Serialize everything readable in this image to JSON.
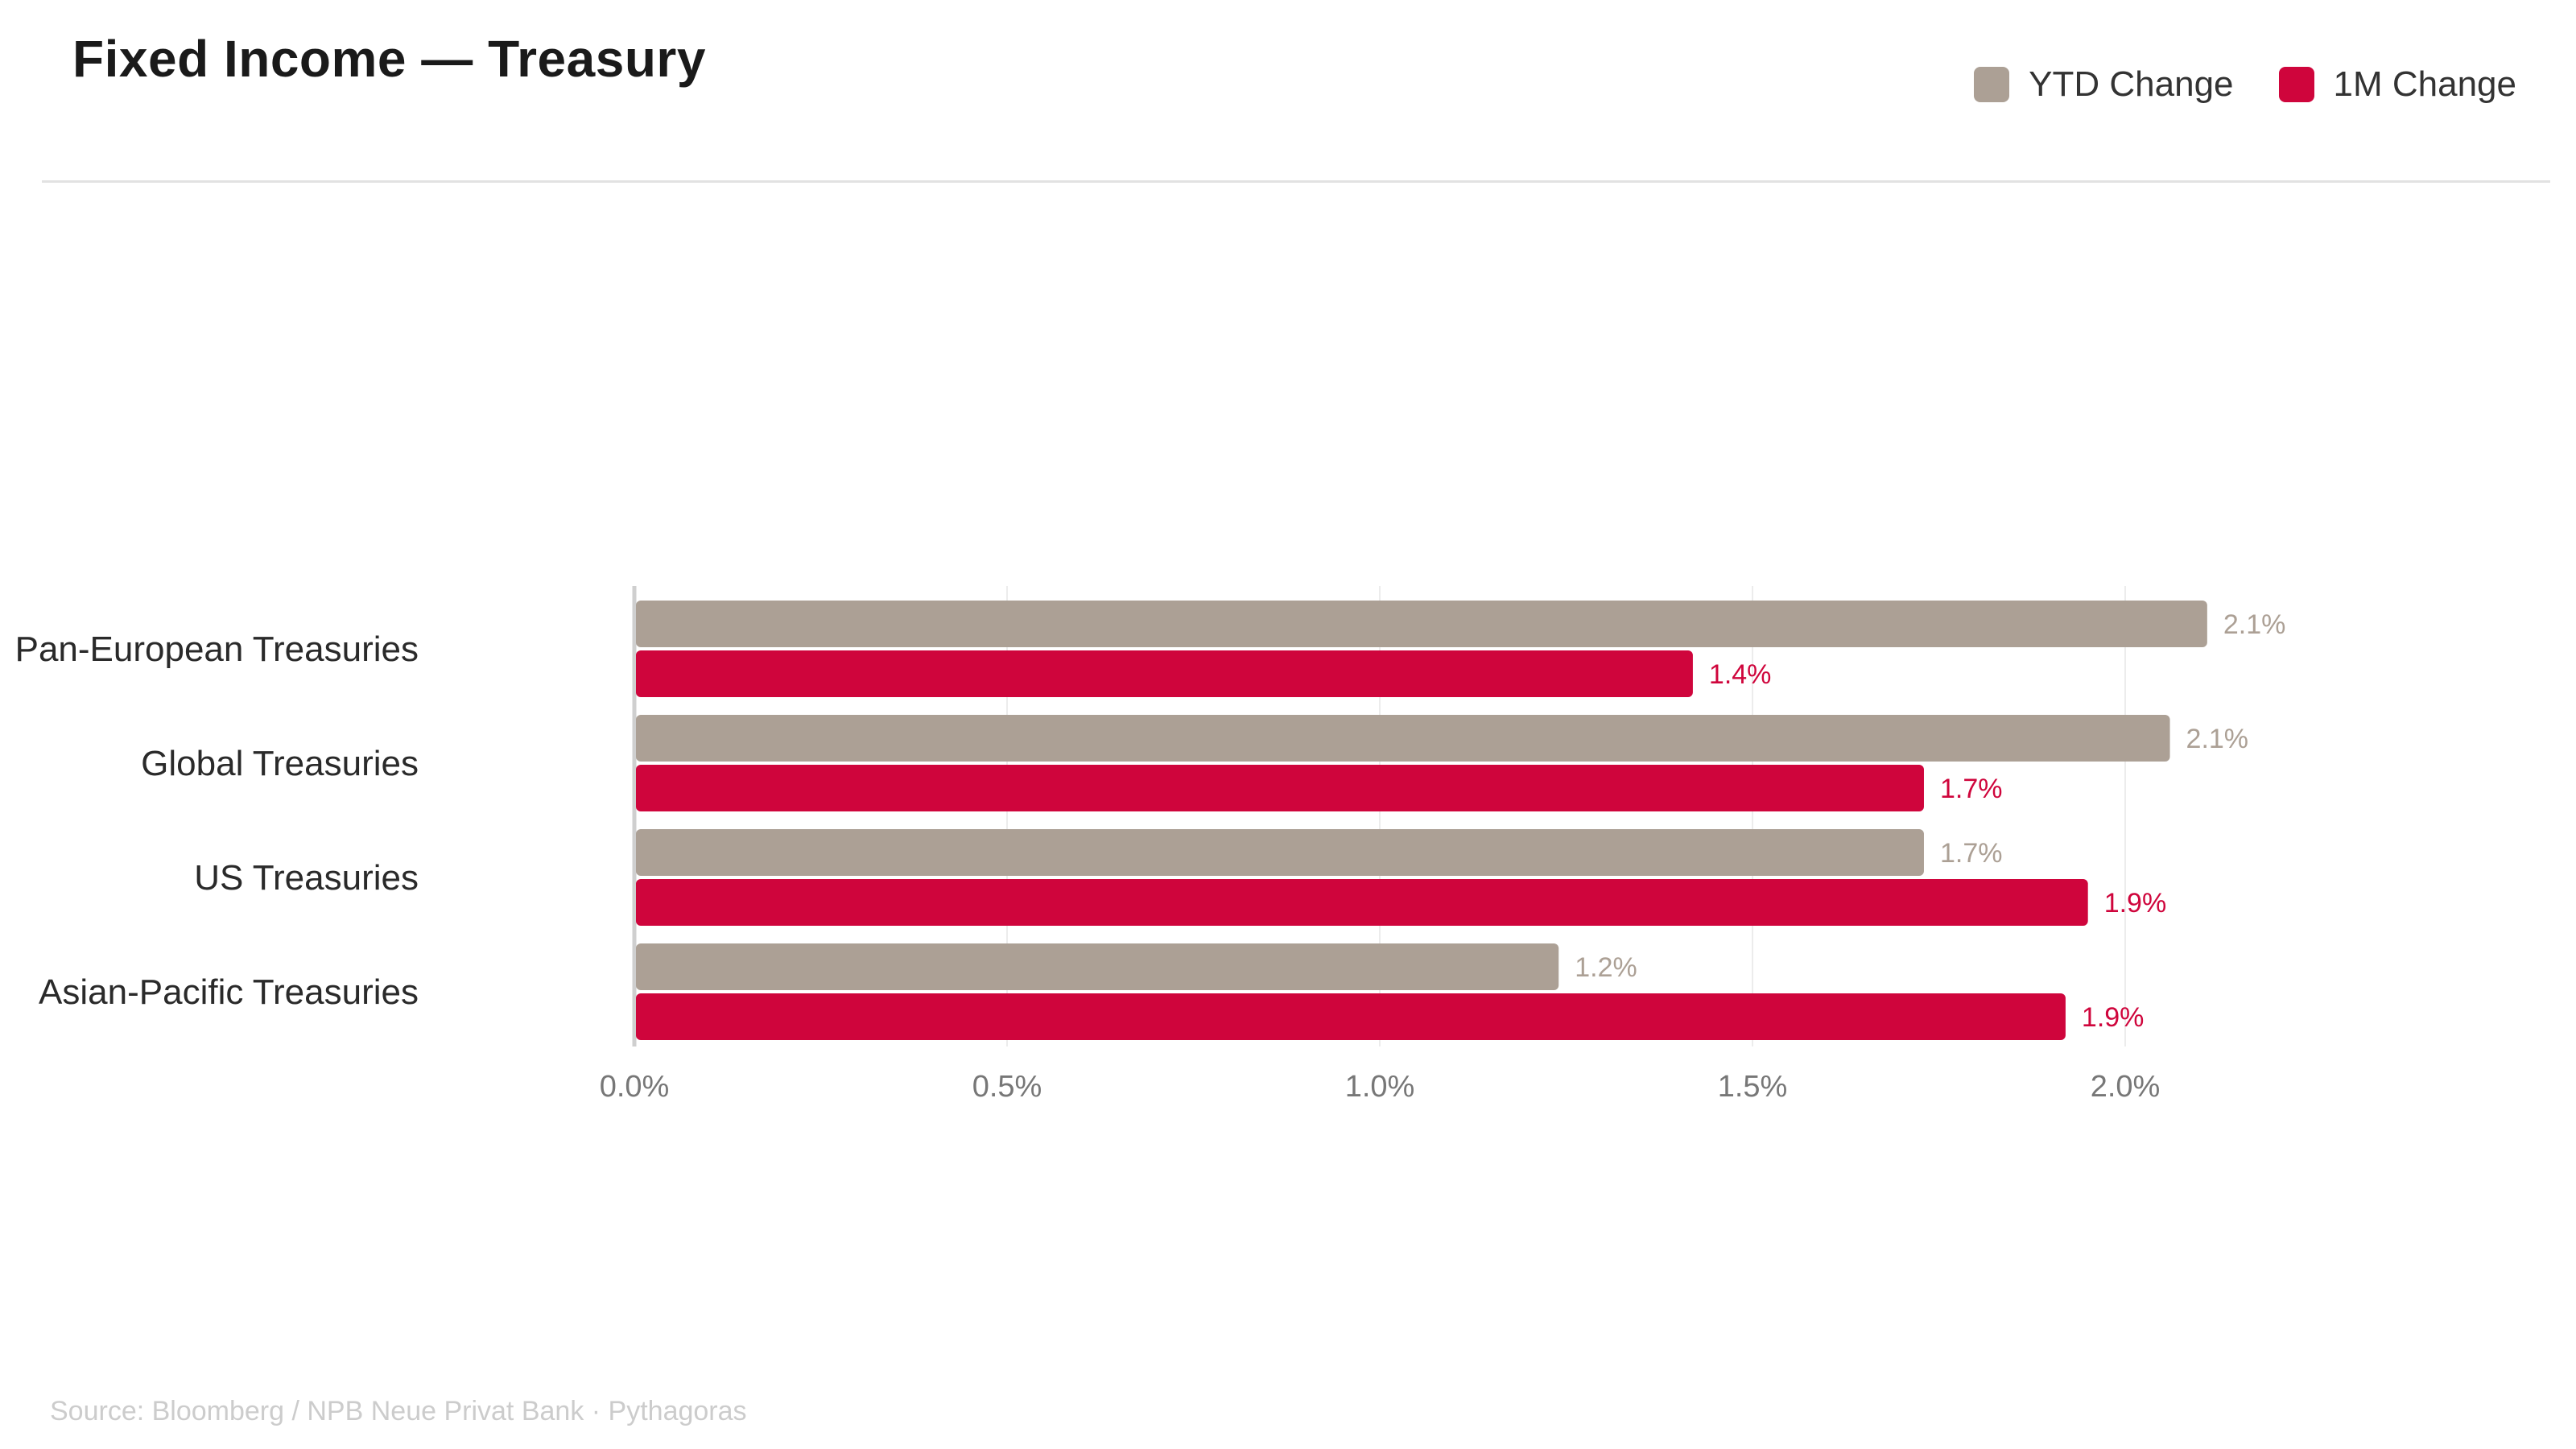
{
  "header": {
    "title": "Fixed Income — Treasury"
  },
  "legend": [
    {
      "label": "YTD Change",
      "color": "#aca095"
    },
    {
      "label": "1M Change",
      "color": "#cf053c"
    }
  ],
  "footer": {
    "source": "Source: Bloomberg / NPB Neue Privat Bank · Pythagoras"
  },
  "chart_data": {
    "type": "bar",
    "orientation": "horizontal",
    "title": "Fixed Income — Treasury",
    "xlabel": "",
    "ylabel": "",
    "xlim": [
      0,
      2.0
    ],
    "x_ticks": [
      0.0,
      0.5,
      1.0,
      1.5,
      2.0
    ],
    "x_tick_labels": [
      "0.0%",
      "0.5%",
      "1.0%",
      "1.5%",
      "2.0%"
    ],
    "grid": true,
    "legend_position": "top-right",
    "categories": [
      "Pan-European Treasuries",
      "Global Treasuries",
      "US Treasuries",
      "Asian-Pacific Treasuries"
    ],
    "series": [
      {
        "name": "YTD Change",
        "color": "#aca095",
        "label_color": "#aca095",
        "values": [
          2.11,
          2.06,
          1.73,
          1.24
        ],
        "labels": [
          "2.1%",
          "2.1%",
          "1.7%",
          "1.2%"
        ]
      },
      {
        "name": "1M Change",
        "color": "#cf053c",
        "label_color": "#cf053c",
        "values": [
          1.42,
          1.73,
          1.95,
          1.92
        ],
        "labels": [
          "1.4%",
          "1.7%",
          "1.9%",
          "1.9%"
        ]
      }
    ]
  }
}
